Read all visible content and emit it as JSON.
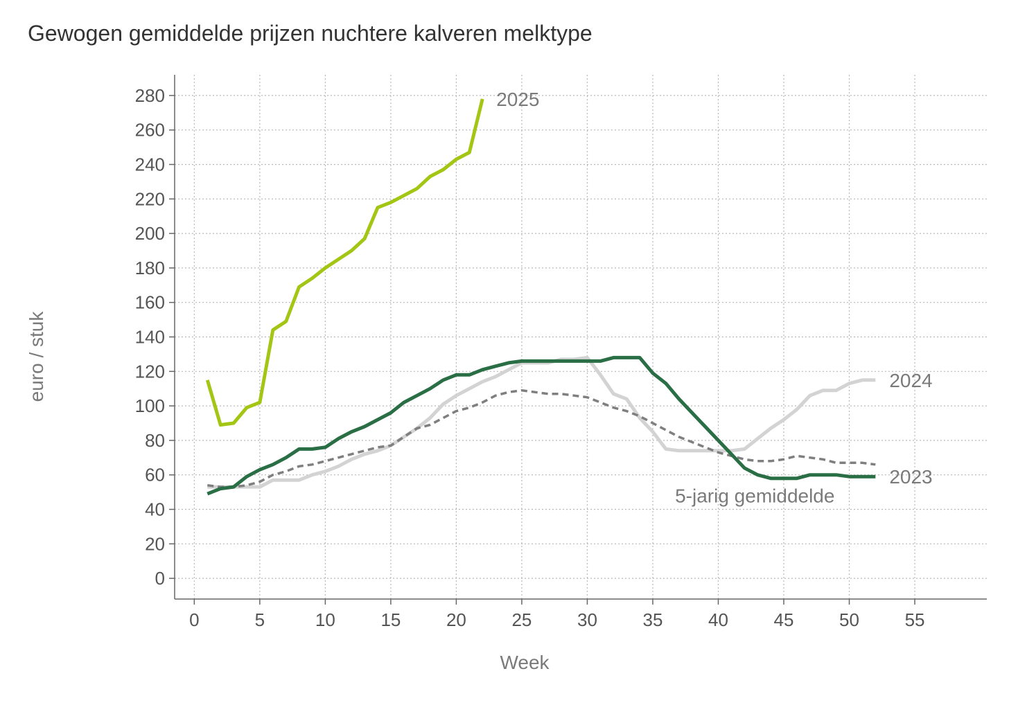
{
  "chart_data": {
    "type": "line",
    "title": "Gewogen gemiddelde prijzen nuchtere kalveren melktype",
    "xlabel": "Week",
    "ylabel": "euro / stuk",
    "xlim": [
      -1.5,
      60.5
    ],
    "ylim": [
      -12,
      292
    ],
    "xticks": [
      0,
      5,
      10,
      15,
      20,
      25,
      30,
      35,
      40,
      45,
      50,
      55
    ],
    "yticks": [
      0,
      20,
      40,
      60,
      80,
      100,
      120,
      140,
      160,
      180,
      200,
      220,
      240,
      260,
      280
    ],
    "grid": true,
    "series": [
      {
        "name": "2024",
        "color": "#d3d3d3",
        "style": "solid",
        "x": [
          1,
          2,
          3,
          4,
          5,
          6,
          7,
          8,
          9,
          10,
          11,
          12,
          13,
          14,
          15,
          16,
          17,
          18,
          19,
          20,
          21,
          22,
          23,
          24,
          25,
          26,
          27,
          28,
          29,
          30,
          31,
          32,
          33,
          34,
          35,
          36,
          37,
          38,
          39,
          40,
          41,
          42,
          43,
          44,
          45,
          46,
          47,
          48,
          49,
          50,
          51,
          52
        ],
        "values": [
          53,
          53,
          53,
          53,
          53,
          57,
          57,
          57,
          60,
          62,
          65,
          69,
          72,
          74,
          77,
          82,
          87,
          93,
          101,
          106,
          110,
          114,
          117,
          121,
          125,
          125,
          125,
          127,
          127,
          128,
          118,
          107,
          104,
          93,
          85,
          75,
          74,
          74,
          74,
          74,
          74,
          75,
          81,
          87,
          92,
          98,
          106,
          109,
          109,
          113,
          115,
          115
        ]
      },
      {
        "name": "5-jarig gemiddelde",
        "color": "#7f7f7f",
        "style": "dashed",
        "x": [
          1,
          2,
          3,
          4,
          5,
          6,
          7,
          8,
          9,
          10,
          11,
          12,
          13,
          14,
          15,
          16,
          17,
          18,
          19,
          20,
          21,
          22,
          23,
          24,
          25,
          26,
          27,
          28,
          29,
          30,
          31,
          32,
          33,
          34,
          35,
          36,
          37,
          38,
          39,
          40,
          41,
          42,
          43,
          44,
          45,
          46,
          47,
          48,
          49,
          50,
          51,
          52
        ],
        "values": [
          54,
          53,
          53,
          54,
          56,
          60,
          62,
          65,
          66,
          68,
          70,
          72,
          74,
          76,
          77,
          82,
          87,
          89,
          93,
          97,
          99,
          102,
          106,
          108,
          109,
          108,
          107,
          107,
          106,
          105,
          102,
          99,
          97,
          94,
          90,
          86,
          82,
          79,
          76,
          73,
          71,
          69,
          68,
          68,
          69,
          71,
          70,
          69,
          67,
          67,
          67,
          66
        ]
      },
      {
        "name": "2023",
        "color": "#2a6e45",
        "style": "solid",
        "x": [
          1,
          2,
          3,
          4,
          5,
          6,
          7,
          8,
          9,
          10,
          11,
          12,
          13,
          14,
          15,
          16,
          17,
          18,
          19,
          20,
          21,
          22,
          23,
          24,
          25,
          26,
          27,
          28,
          29,
          30,
          31,
          32,
          33,
          34,
          35,
          36,
          37,
          38,
          39,
          40,
          41,
          42,
          43,
          44,
          45,
          46,
          47,
          48,
          49,
          50,
          51,
          52
        ],
        "values": [
          49,
          52,
          53,
          59,
          63,
          66,
          70,
          75,
          75,
          76,
          81,
          85,
          88,
          92,
          96,
          102,
          106,
          110,
          115,
          118,
          118,
          121,
          123,
          125,
          126,
          126,
          126,
          126,
          126,
          126,
          126,
          128,
          128,
          128,
          119,
          113,
          104,
          96,
          88,
          80,
          72,
          64,
          60,
          58,
          58,
          58,
          60,
          60,
          60,
          59,
          59,
          59
        ]
      },
      {
        "name": "2025",
        "color": "#a3c614",
        "style": "solid",
        "x": [
          1,
          2,
          3,
          4,
          5,
          6,
          7,
          8,
          9,
          10,
          11,
          12,
          13,
          14,
          15,
          16,
          17,
          18,
          19,
          20,
          21,
          22
        ],
        "values": [
          115,
          89,
          90,
          99,
          102,
          144,
          149,
          169,
          174,
          180,
          185,
          190,
          197,
          215,
          218,
          222,
          226,
          233,
          237,
          243,
          247,
          278
        ]
      }
    ]
  }
}
